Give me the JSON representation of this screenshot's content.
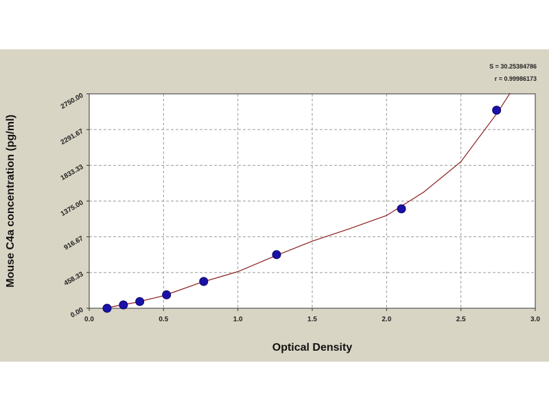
{
  "chart_data": {
    "type": "scatter",
    "title": "",
    "xlabel": "Optical Density",
    "ylabel": "Mouse C4a concentration (pg/ml)",
    "xlim": [
      0,
      3.0
    ],
    "ylim": [
      0,
      2750
    ],
    "x_ticks": [
      "0.0",
      "0.5",
      "1.0",
      "1.5",
      "2.0",
      "2.5",
      "3.0"
    ],
    "y_ticks": [
      "0.00",
      "458.33",
      "916.67",
      "1375.00",
      "1833.33",
      "2291.67",
      "2750.00"
    ],
    "grid": true,
    "stats": [
      "S = 30.25384786",
      "r = 0.99986173"
    ],
    "points": [
      {
        "x": 0.12,
        "y": 0
      },
      {
        "x": 0.23,
        "y": 43
      },
      {
        "x": 0.34,
        "y": 86
      },
      {
        "x": 0.52,
        "y": 172
      },
      {
        "x": 0.77,
        "y": 344
      },
      {
        "x": 1.26,
        "y": 688
      },
      {
        "x": 2.1,
        "y": 1275
      },
      {
        "x": 2.74,
        "y": 2540
      }
    ],
    "fit_curve": {
      "x": [
        0.1,
        0.3,
        0.5,
        0.75,
        1.0,
        1.25,
        1.5,
        1.75,
        2.0,
        2.25,
        2.5,
        2.75,
        2.83
      ],
      "y": [
        0,
        70,
        160,
        330,
        470,
        670,
        860,
        1020,
        1190,
        1490,
        1880,
        2520,
        2760
      ]
    },
    "colors": {
      "point_fill": "#1a12a8",
      "curve": "#8b1a1a",
      "plot_bg": "#ffffff",
      "figure_bg": "#d9d5c5",
      "grid": "#999999"
    }
  }
}
